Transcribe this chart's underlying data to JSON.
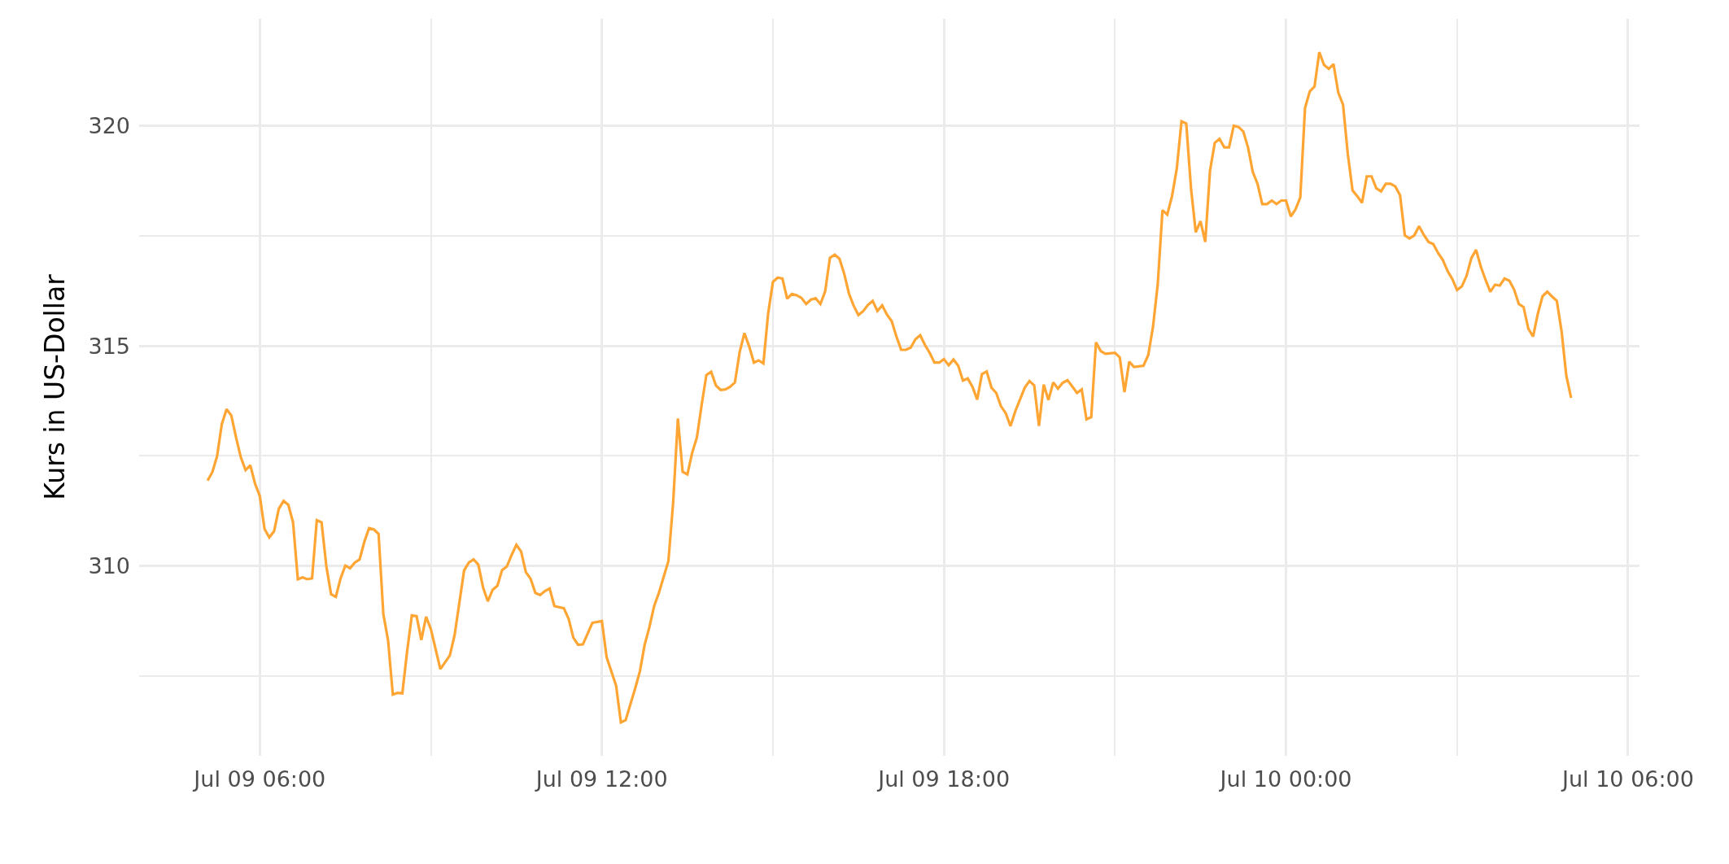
{
  "chart_data": {
    "type": "line",
    "ylabel": "Kurs in US-Dollar",
    "x": [
      "--07-09T05:05",
      "--07-09T05:10",
      "--07-09T05:15",
      "--07-09T05:20",
      "--07-09T05:25",
      "--07-09T05:30",
      "--07-09T05:35",
      "--07-09T05:40",
      "--07-09T05:45",
      "--07-09T05:50",
      "--07-09T05:55",
      "--07-09T06:00",
      "--07-09T06:05",
      "--07-09T06:10",
      "--07-09T06:15",
      "--07-09T06:20",
      "--07-09T06:25",
      "--07-09T06:30",
      "--07-09T06:35",
      "--07-09T06:40",
      "--07-09T06:45",
      "--07-09T06:50",
      "--07-09T06:55",
      "--07-09T07:00",
      "--07-09T07:05",
      "--07-09T07:10",
      "--07-09T07:15",
      "--07-09T07:20",
      "--07-09T07:25",
      "--07-09T07:30",
      "--07-09T07:35",
      "--07-09T07:40",
      "--07-09T07:45",
      "--07-09T07:50",
      "--07-09T07:55",
      "--07-09T08:00",
      "--07-09T08:05",
      "--07-09T08:10",
      "--07-09T08:15",
      "--07-09T08:20",
      "--07-09T08:25",
      "--07-09T08:30",
      "--07-09T08:35",
      "--07-09T08:40",
      "--07-09T08:45",
      "--07-09T08:50",
      "--07-09T08:55",
      "--07-09T09:00",
      "--07-09T09:10",
      "--07-09T09:20",
      "--07-09T09:25",
      "--07-09T09:35",
      "--07-09T09:40",
      "--07-09T09:45",
      "--07-09T09:50",
      "--07-09T09:55",
      "--07-09T10:00",
      "--07-09T10:05",
      "--07-09T10:10",
      "--07-09T10:15",
      "--07-09T10:20",
      "--07-09T10:25",
      "--07-09T10:30",
      "--07-09T10:35",
      "--07-09T10:40",
      "--07-09T10:45",
      "--07-09T10:50",
      "--07-09T10:55",
      "--07-09T11:00",
      "--07-09T11:05",
      "--07-09T11:10",
      "--07-09T11:20",
      "--07-09T11:25",
      "--07-09T11:30",
      "--07-09T11:35",
      "--07-09T11:40",
      "--07-09T11:50",
      "--07-09T12:00",
      "--07-09T12:05",
      "--07-09T12:15",
      "--07-09T12:20",
      "--07-09T12:25",
      "--07-09T12:35",
      "--07-09T12:40",
      "--07-09T12:45",
      "--07-09T12:50",
      "--07-09T12:55",
      "--07-09T13:00",
      "--07-09T13:10",
      "--07-09T13:15",
      "--07-09T13:20",
      "--07-09T13:25",
      "--07-09T13:30",
      "--07-09T13:35",
      "--07-09T13:40",
      "--07-09T13:45",
      "--07-09T13:50",
      "--07-09T13:55",
      "--07-09T14:00",
      "--07-09T14:05",
      "--07-09T14:10",
      "--07-09T14:15",
      "--07-09T14:20",
      "--07-09T14:25",
      "--07-09T14:30",
      "--07-09T14:35",
      "--07-09T14:40",
      "--07-09T14:45",
      "--07-09T14:50",
      "--07-09T14:55",
      "--07-09T15:00",
      "--07-09T15:05",
      "--07-09T15:10",
      "--07-09T15:15",
      "--07-09T15:20",
      "--07-09T15:25",
      "--07-09T15:30",
      "--07-09T15:35",
      "--07-09T15:40",
      "--07-09T15:45",
      "--07-09T15:50",
      "--07-09T15:55",
      "--07-09T16:00",
      "--07-09T16:05",
      "--07-09T16:10",
      "--07-09T16:15",
      "--07-09T16:20",
      "--07-09T16:25",
      "--07-09T16:30",
      "--07-09T16:35",
      "--07-09T16:40",
      "--07-09T16:45",
      "--07-09T16:50",
      "--07-09T16:55",
      "--07-09T17:00",
      "--07-09T17:05",
      "--07-09T17:10",
      "--07-09T17:15",
      "--07-09T17:20",
      "--07-09T17:25",
      "--07-09T17:30",
      "--07-09T17:35",
      "--07-09T17:40",
      "--07-09T17:45",
      "--07-09T17:50",
      "--07-09T17:55",
      "--07-09T18:00",
      "--07-09T18:05",
      "--07-09T18:10",
      "--07-09T18:15",
      "--07-09T18:20",
      "--07-09T18:25",
      "--07-09T18:30",
      "--07-09T18:35",
      "--07-09T18:40",
      "--07-09T18:45",
      "--07-09T18:50",
      "--07-09T18:55",
      "--07-09T19:00",
      "--07-09T19:05",
      "--07-09T19:10",
      "--07-09T19:15",
      "--07-09T19:25",
      "--07-09T19:30",
      "--07-09T19:35",
      "--07-09T19:40",
      "--07-09T19:45",
      "--07-09T19:50",
      "--07-09T19:55",
      "--07-09T20:00",
      "--07-09T20:05",
      "--07-09T20:10",
      "--07-09T20:15",
      "--07-09T20:20",
      "--07-09T20:25",
      "--07-09T20:30",
      "--07-09T20:35",
      "--07-09T20:40",
      "--07-09T20:45",
      "--07-09T20:50",
      "--07-09T21:00",
      "--07-09T21:05",
      "--07-09T21:10",
      "--07-09T21:15",
      "--07-09T21:20",
      "--07-09T21:30",
      "--07-09T21:35",
      "--07-09T21:40",
      "--07-09T21:45",
      "--07-09T21:50",
      "--07-09T21:55",
      "--07-09T22:00",
      "--07-09T22:05",
      "--07-09T22:10",
      "--07-09T22:15",
      "--07-09T22:20",
      "--07-09T22:25",
      "--07-09T22:30",
      "--07-09T22:35",
      "--07-09T22:40",
      "--07-09T22:45",
      "--07-09T22:50",
      "--07-09T22:55",
      "--07-09T23:00",
      "--07-09T23:05",
      "--07-09T23:10",
      "--07-09T23:15",
      "--07-09T23:20",
      "--07-09T23:25",
      "--07-09T23:30",
      "--07-09T23:35",
      "--07-09T23:40",
      "--07-09T23:45",
      "--07-09T23:50",
      "--07-09T23:55",
      "--07-10T00:00",
      "--07-10T00:05",
      "--07-10T00:10",
      "--07-10T00:15",
      "--07-10T00:20",
      "--07-10T00:25",
      "--07-10T00:30",
      "--07-10T00:35",
      "--07-10T00:40",
      "--07-10T00:45",
      "--07-10T00:50",
      "--07-10T00:55",
      "--07-10T01:00",
      "--07-10T01:05",
      "--07-10T01:10",
      "--07-10T01:15",
      "--07-10T01:20",
      "--07-10T01:25",
      "--07-10T01:30",
      "--07-10T01:35",
      "--07-10T01:40",
      "--07-10T01:45",
      "--07-10T01:50",
      "--07-10T01:55",
      "--07-10T02:00",
      "--07-10T02:05",
      "--07-10T02:10",
      "--07-10T02:15",
      "--07-10T02:20",
      "--07-10T02:25",
      "--07-10T02:30",
      "--07-10T02:35",
      "--07-10T02:40",
      "--07-10T02:45",
      "--07-10T02:50",
      "--07-10T02:55",
      "--07-10T03:00",
      "--07-10T03:05",
      "--07-10T03:10",
      "--07-10T03:15",
      "--07-10T03:20",
      "--07-10T03:25",
      "--07-10T03:30",
      "--07-10T03:35",
      "--07-10T03:40",
      "--07-10T03:45",
      "--07-10T03:50",
      "--07-10T03:55",
      "--07-10T04:00",
      "--07-10T04:05",
      "--07-10T04:10",
      "--07-10T04:15",
      "--07-10T04:20",
      "--07-10T04:25",
      "--07-10T04:30",
      "--07-10T04:35",
      "--07-10T04:40",
      "--07-10T04:45",
      "--07-10T04:50",
      "--07-10T04:55",
      "--07-10T05:00"
    ],
    "series": [
      {
        "color": "#ffa533",
        "values": [
          311.94,
          312.13,
          312.49,
          313.22,
          313.56,
          313.42,
          312.92,
          312.47,
          312.18,
          312.29,
          311.87,
          311.59,
          310.84,
          310.65,
          310.79,
          311.3,
          311.48,
          311.39,
          310.99,
          309.7,
          309.74,
          309.7,
          309.72,
          311.04,
          310.99,
          310.0,
          309.36,
          309.3,
          309.72,
          310.01,
          309.95,
          310.08,
          310.15,
          310.55,
          310.86,
          310.83,
          310.73,
          308.91,
          308.31,
          307.08,
          307.12,
          307.11,
          308.06,
          308.88,
          308.86,
          308.32,
          308.85,
          308.57,
          307.66,
          307.97,
          308.43,
          309.9,
          310.08,
          310.15,
          310.03,
          309.51,
          309.2,
          309.46,
          309.55,
          309.91,
          309.99,
          310.25,
          310.48,
          310.33,
          309.86,
          309.71,
          309.39,
          309.34,
          309.43,
          309.49,
          309.09,
          309.04,
          308.8,
          308.37,
          308.21,
          308.22,
          308.71,
          308.75,
          307.93,
          307.28,
          306.45,
          306.5,
          307.22,
          307.61,
          308.21,
          308.61,
          309.09,
          309.39,
          310.11,
          311.44,
          313.35,
          312.14,
          312.08,
          312.57,
          312.92,
          313.66,
          314.34,
          314.41,
          314.1,
          314.0,
          314.01,
          314.07,
          314.17,
          314.86,
          315.29,
          314.99,
          314.62,
          314.67,
          314.6,
          315.74,
          316.45,
          316.55,
          316.53,
          316.07,
          316.18,
          316.15,
          316.09,
          315.95,
          316.05,
          316.08,
          315.95,
          316.24,
          317.0,
          317.07,
          316.98,
          316.64,
          316.19,
          315.91,
          315.7,
          315.79,
          315.93,
          316.02,
          315.79,
          315.92,
          315.71,
          315.56,
          315.21,
          314.91,
          314.91,
          314.96,
          315.15,
          315.24,
          315.02,
          314.84,
          314.62,
          314.62,
          314.7,
          314.56,
          314.69,
          314.55,
          314.21,
          314.26,
          314.07,
          313.78,
          314.36,
          314.42,
          314.05,
          313.93,
          313.63,
          313.47,
          313.18,
          313.51,
          314.05,
          314.2,
          314.1,
          313.18,
          314.12,
          313.77,
          314.17,
          314.03,
          314.16,
          314.22,
          314.08,
          313.93,
          314.01,
          313.33,
          313.38,
          315.08,
          314.88,
          314.82,
          314.84,
          314.74,
          313.95,
          314.64,
          314.52,
          314.55,
          314.79,
          315.43,
          316.4,
          318.08,
          317.98,
          318.4,
          319.02,
          320.1,
          320.05,
          318.58,
          317.58,
          317.83,
          317.36,
          318.98,
          319.61,
          319.7,
          319.51,
          319.51,
          320.0,
          319.97,
          319.87,
          319.51,
          318.95,
          318.68,
          318.22,
          318.22,
          318.3,
          318.22,
          318.3,
          318.3,
          317.94,
          318.1,
          318.37,
          320.4,
          320.78,
          320.89,
          321.67,
          321.38,
          321.29,
          321.4,
          320.75,
          320.48,
          319.36,
          318.53,
          318.4,
          318.25,
          318.85,
          318.85,
          318.58,
          318.51,
          318.68,
          318.68,
          318.62,
          318.42,
          317.51,
          317.44,
          317.51,
          317.72,
          317.52,
          317.36,
          317.31,
          317.11,
          316.95,
          316.7,
          316.52,
          316.27,
          316.35,
          316.59,
          316.99,
          317.18,
          316.8,
          316.5,
          316.23,
          316.39,
          316.37,
          316.53,
          316.48,
          316.28,
          315.95,
          315.88,
          315.39,
          315.21,
          315.73,
          316.13,
          316.23,
          316.12,
          316.02,
          315.33,
          314.32,
          313.82
        ]
      }
    ],
    "xlim": [
      "--07-09T03:53",
      "--07-10T06:12"
    ],
    "xticks": [
      {
        "value": "--07-09T06:00",
        "label": "Jul 09 06:00"
      },
      {
        "value": "--07-09T09:00",
        "label": null
      },
      {
        "value": "--07-09T12:00",
        "label": "Jul 09 12:00"
      },
      {
        "value": "--07-09T15:00",
        "label": null
      },
      {
        "value": "--07-09T18:00",
        "label": "Jul 09 18:00"
      },
      {
        "value": "--07-09T21:00",
        "label": null
      },
      {
        "value": "--07-10T00:00",
        "label": "Jul 10 00:00"
      },
      {
        "value": "--07-10T03:00",
        "label": null
      },
      {
        "value": "--07-10T06:00",
        "label": "Jul 10 06:00"
      }
    ],
    "ylim": [
      305.69,
      322.43
    ],
    "yticks": [
      {
        "value": 307.5,
        "label": null
      },
      310,
      {
        "value": 312.5,
        "label": null
      },
      315,
      {
        "value": 317.5,
        "label": null
      },
      320
    ],
    "grid": true,
    "marker": "none",
    "line_style": "solid"
  }
}
